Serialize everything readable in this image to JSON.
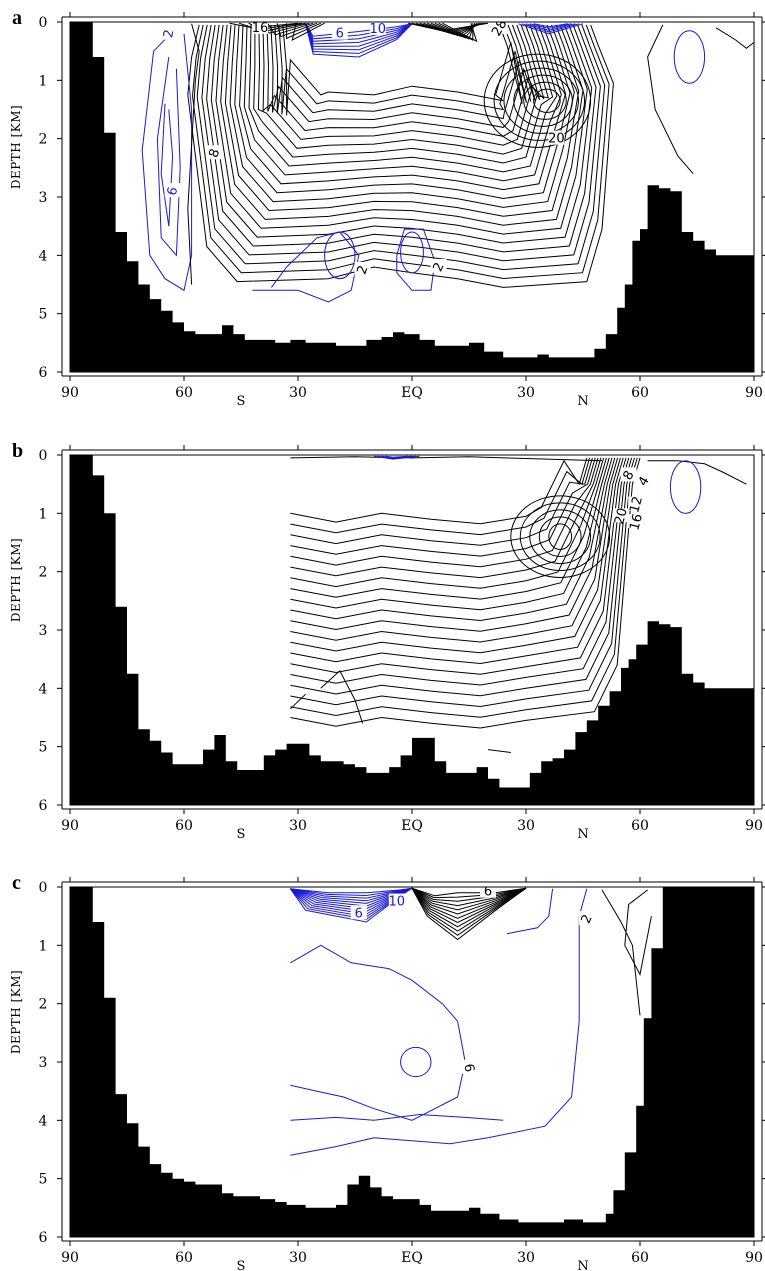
{
  "figure": {
    "panel_labels": [
      "a",
      "b",
      "c"
    ]
  },
  "colors": {
    "positive": "#000000",
    "negative": "#1a1ad6",
    "topography": "#000000"
  },
  "chart_data": [
    {
      "type": "contour",
      "panel": "a",
      "ylabel": "DEPTH [KM]",
      "yticks": [
        "0",
        "1",
        "2",
        "3",
        "4",
        "5",
        "6"
      ],
      "xticks": [
        "90",
        "60",
        "30",
        "EQ",
        "30",
        "60",
        "90"
      ],
      "hemisphere_labels": [
        "S",
        "N"
      ],
      "xlim": [
        -90,
        90
      ],
      "ylim": [
        6,
        0
      ],
      "contour_labels": [
        {
          "text": "2",
          "x": -64,
          "y": 0.2,
          "color": "negative",
          "rot": -80
        },
        {
          "text": "16",
          "x": -40,
          "y": 0.1,
          "color": "positive",
          "rot": 0
        },
        {
          "text": "6",
          "x": -19,
          "y": 0.2,
          "color": "negative",
          "rot": 0
        },
        {
          "text": "10",
          "x": -9,
          "y": 0.12,
          "color": "negative",
          "rot": 0
        },
        {
          "text": "8",
          "x": -52,
          "y": 2.25,
          "color": "positive",
          "rot": -70
        },
        {
          "text": "6",
          "x": -63,
          "y": 2.9,
          "color": "negative",
          "rot": -75
        },
        {
          "text": "2",
          "x": -13,
          "y": 4.25,
          "color": "positive",
          "rot": -70
        },
        {
          "text": "2",
          "x": 7,
          "y": 4.2,
          "color": "positive",
          "rot": -65
        },
        {
          "text": "20",
          "x": 38,
          "y": 2.0,
          "color": "positive",
          "rot": 0
        },
        {
          "text": "28",
          "x": 23,
          "y": 0.1,
          "color": "positive",
          "rot": -60
        }
      ],
      "topography": [
        [
          -90,
          0
        ],
        [
          -84,
          0
        ],
        [
          -84,
          0.6
        ],
        [
          -81,
          0.6
        ],
        [
          -81,
          1.9
        ],
        [
          -78,
          1.9
        ],
        [
          -78,
          3.6
        ],
        [
          -75,
          3.6
        ],
        [
          -75,
          4.1
        ],
        [
          -72,
          4.1
        ],
        [
          -72,
          4.5
        ],
        [
          -69,
          4.5
        ],
        [
          -69,
          4.75
        ],
        [
          -66,
          4.75
        ],
        [
          -66,
          4.95
        ],
        [
          -63,
          4.95
        ],
        [
          -63,
          5.15
        ],
        [
          -60,
          5.15
        ],
        [
          -60,
          5.3
        ],
        [
          -57,
          5.3
        ],
        [
          -57,
          5.35
        ],
        [
          -50,
          5.35
        ],
        [
          -50,
          5.2
        ],
        [
          -47,
          5.2
        ],
        [
          -47,
          5.35
        ],
        [
          -44,
          5.35
        ],
        [
          -44,
          5.45
        ],
        [
          -36,
          5.45
        ],
        [
          -36,
          5.5
        ],
        [
          -32,
          5.5
        ],
        [
          -32,
          5.45
        ],
        [
          -28,
          5.45
        ],
        [
          -28,
          5.5
        ],
        [
          -20,
          5.5
        ],
        [
          -20,
          5.55
        ],
        [
          -12,
          5.55
        ],
        [
          -12,
          5.45
        ],
        [
          -8,
          5.45
        ],
        [
          -8,
          5.4
        ],
        [
          -5,
          5.4
        ],
        [
          -5,
          5.32
        ],
        [
          -2,
          5.32
        ],
        [
          -2,
          5.35
        ],
        [
          2,
          5.35
        ],
        [
          2,
          5.45
        ],
        [
          6,
          5.45
        ],
        [
          6,
          5.55
        ],
        [
          15,
          5.55
        ],
        [
          15,
          5.5
        ],
        [
          19,
          5.5
        ],
        [
          19,
          5.65
        ],
        [
          24,
          5.65
        ],
        [
          24,
          5.75
        ],
        [
          33,
          5.75
        ],
        [
          33,
          5.7
        ],
        [
          36,
          5.7
        ],
        [
          36,
          5.75
        ],
        [
          48,
          5.75
        ],
        [
          48,
          5.6
        ],
        [
          51,
          5.6
        ],
        [
          51,
          5.35
        ],
        [
          54,
          5.35
        ],
        [
          54,
          4.9
        ],
        [
          56,
          4.9
        ],
        [
          56,
          4.5
        ],
        [
          58,
          4.5
        ],
        [
          58,
          3.75
        ],
        [
          60,
          3.75
        ],
        [
          60,
          3.55
        ],
        [
          62,
          3.55
        ],
        [
          62,
          2.8
        ],
        [
          65,
          2.8
        ],
        [
          65,
          2.85
        ],
        [
          68,
          2.85
        ],
        [
          68,
          2.9
        ],
        [
          71,
          2.9
        ],
        [
          71,
          3.6
        ],
        [
          74,
          3.6
        ],
        [
          74,
          3.75
        ],
        [
          77,
          3.75
        ],
        [
          77,
          3.9
        ],
        [
          80,
          3.9
        ],
        [
          80,
          4.0
        ],
        [
          90,
          4.0
        ],
        [
          90,
          6
        ],
        [
          -90,
          6
        ]
      ]
    },
    {
      "type": "contour",
      "panel": "b",
      "ylabel": "DEPTH [KM]",
      "yticks": [
        "0",
        "1",
        "2",
        "3",
        "4",
        "5",
        "6"
      ],
      "xticks": [
        "90",
        "60",
        "30",
        "EQ",
        "30",
        "60",
        "90"
      ],
      "hemisphere_labels": [
        "S",
        "N"
      ],
      "xlim": [
        -90,
        90
      ],
      "ylim": [
        6,
        0
      ],
      "contour_labels": [
        {
          "text": "8",
          "x": 57,
          "y": 0.35,
          "color": "positive",
          "rot": -60
        },
        {
          "text": "4",
          "x": 61,
          "y": 0.45,
          "color": "positive",
          "rot": -60
        },
        {
          "text": "12",
          "x": 59,
          "y": 0.85,
          "color": "positive",
          "rot": -75
        },
        {
          "text": "16",
          "x": 59,
          "y": 1.15,
          "color": "positive",
          "rot": -75
        },
        {
          "text": "20",
          "x": 55,
          "y": 1.05,
          "color": "positive",
          "rot": -75
        }
      ],
      "topography": [
        [
          -90,
          0
        ],
        [
          -84,
          0
        ],
        [
          -84,
          0.35
        ],
        [
          -81,
          0.35
        ],
        [
          -81,
          1.0
        ],
        [
          -78,
          1.0
        ],
        [
          -78,
          2.6
        ],
        [
          -75,
          2.6
        ],
        [
          -75,
          3.75
        ],
        [
          -72,
          3.75
        ],
        [
          -72,
          4.7
        ],
        [
          -69,
          4.7
        ],
        [
          -69,
          4.9
        ],
        [
          -66,
          4.9
        ],
        [
          -66,
          5.1
        ],
        [
          -63,
          5.1
        ],
        [
          -63,
          5.3
        ],
        [
          -55,
          5.3
        ],
        [
          -55,
          5.05
        ],
        [
          -52,
          5.05
        ],
        [
          -52,
          4.8
        ],
        [
          -49,
          4.8
        ],
        [
          -49,
          5.25
        ],
        [
          -46,
          5.25
        ],
        [
          -46,
          5.4
        ],
        [
          -39,
          5.4
        ],
        [
          -39,
          5.15
        ],
        [
          -36,
          5.15
        ],
        [
          -36,
          5.05
        ],
        [
          -33,
          5.05
        ],
        [
          -33,
          4.95
        ],
        [
          -27,
          4.95
        ],
        [
          -27,
          5.15
        ],
        [
          -24,
          5.15
        ],
        [
          -24,
          5.25
        ],
        [
          -18,
          5.25
        ],
        [
          -18,
          5.3
        ],
        [
          -15,
          5.3
        ],
        [
          -15,
          5.35
        ],
        [
          -12,
          5.35
        ],
        [
          -12,
          5.45
        ],
        [
          -6,
          5.45
        ],
        [
          -6,
          5.35
        ],
        [
          -3,
          5.35
        ],
        [
          -3,
          5.15
        ],
        [
          0,
          5.15
        ],
        [
          0,
          4.85
        ],
        [
          6,
          4.85
        ],
        [
          6,
          5.25
        ],
        [
          9,
          5.25
        ],
        [
          9,
          5.45
        ],
        [
          17,
          5.45
        ],
        [
          17,
          5.35
        ],
        [
          20,
          5.35
        ],
        [
          20,
          5.55
        ],
        [
          23,
          5.55
        ],
        [
          23,
          5.7
        ],
        [
          31,
          5.7
        ],
        [
          31,
          5.45
        ],
        [
          34,
          5.45
        ],
        [
          34,
          5.25
        ],
        [
          37,
          5.25
        ],
        [
          37,
          5.2
        ],
        [
          40,
          5.2
        ],
        [
          40,
          5.05
        ],
        [
          43,
          5.05
        ],
        [
          43,
          4.75
        ],
        [
          46,
          4.75
        ],
        [
          46,
          4.55
        ],
        [
          49,
          4.55
        ],
        [
          49,
          4.3
        ],
        [
          52,
          4.3
        ],
        [
          52,
          4.05
        ],
        [
          55,
          4.05
        ],
        [
          55,
          3.65
        ],
        [
          57,
          3.65
        ],
        [
          57,
          3.5
        ],
        [
          59,
          3.5
        ],
        [
          59,
          3.25
        ],
        [
          62,
          3.25
        ],
        [
          62,
          2.85
        ],
        [
          65,
          2.85
        ],
        [
          65,
          2.9
        ],
        [
          68,
          2.9
        ],
        [
          68,
          2.95
        ],
        [
          71,
          2.95
        ],
        [
          71,
          3.75
        ],
        [
          74,
          3.75
        ],
        [
          74,
          3.9
        ],
        [
          77,
          3.9
        ],
        [
          77,
          4.0
        ],
        [
          90,
          4.0
        ],
        [
          90,
          6
        ],
        [
          -90,
          6
        ]
      ]
    },
    {
      "type": "contour",
      "panel": "c",
      "ylabel": "DEPTH [KM]",
      "yticks": [
        "0",
        "1",
        "2",
        "3",
        "4",
        "5",
        "6"
      ],
      "xticks": [
        "90",
        "60",
        "30",
        "EQ",
        "30",
        "60",
        "90"
      ],
      "hemisphere_labels": [
        "S",
        "N"
      ],
      "xlim": [
        -90,
        90
      ],
      "ylim": [
        6,
        0
      ],
      "contour_labels": [
        {
          "text": "6",
          "x": -14,
          "y": 0.45,
          "color": "negative",
          "rot": 0
        },
        {
          "text": "10",
          "x": -4,
          "y": 0.25,
          "color": "negative",
          "rot": 0
        },
        {
          "text": "6",
          "x": 15,
          "y": 3.1,
          "color": "positive",
          "rot": 80
        },
        {
          "text": "2",
          "x": 46,
          "y": 0.55,
          "color": "positive",
          "rot": -65
        },
        {
          "text": "6",
          "x": 20,
          "y": 0.08,
          "color": "positive",
          "rot": 0
        }
      ],
      "topography": [
        [
          -90,
          0
        ],
        [
          -84,
          0
        ],
        [
          -84,
          0.6
        ],
        [
          -81,
          0.6
        ],
        [
          -81,
          1.9
        ],
        [
          -78,
          1.9
        ],
        [
          -78,
          3.55
        ],
        [
          -75,
          3.55
        ],
        [
          -75,
          4.05
        ],
        [
          -72,
          4.05
        ],
        [
          -72,
          4.45
        ],
        [
          -69,
          4.45
        ],
        [
          -69,
          4.75
        ],
        [
          -66,
          4.75
        ],
        [
          -66,
          4.9
        ],
        [
          -63,
          4.9
        ],
        [
          -63,
          5.0
        ],
        [
          -60,
          5.0
        ],
        [
          -60,
          5.05
        ],
        [
          -57,
          5.05
        ],
        [
          -57,
          5.1
        ],
        [
          -50,
          5.1
        ],
        [
          -50,
          5.25
        ],
        [
          -47,
          5.25
        ],
        [
          -47,
          5.3
        ],
        [
          -40,
          5.3
        ],
        [
          -40,
          5.35
        ],
        [
          -36,
          5.35
        ],
        [
          -36,
          5.4
        ],
        [
          -33,
          5.4
        ],
        [
          -33,
          5.45
        ],
        [
          -28,
          5.45
        ],
        [
          -28,
          5.5
        ],
        [
          -20,
          5.5
        ],
        [
          -20,
          5.45
        ],
        [
          -17,
          5.45
        ],
        [
          -17,
          5.1
        ],
        [
          -14,
          5.1
        ],
        [
          -14,
          4.95
        ],
        [
          -11,
          4.95
        ],
        [
          -11,
          5.15
        ],
        [
          -8,
          5.15
        ],
        [
          -8,
          5.3
        ],
        [
          -5,
          5.3
        ],
        [
          -5,
          5.35
        ],
        [
          2,
          5.35
        ],
        [
          2,
          5.45
        ],
        [
          5,
          5.45
        ],
        [
          5,
          5.55
        ],
        [
          15,
          5.55
        ],
        [
          15,
          5.5
        ],
        [
          18,
          5.5
        ],
        [
          18,
          5.6
        ],
        [
          23,
          5.6
        ],
        [
          23,
          5.7
        ],
        [
          28,
          5.7
        ],
        [
          28,
          5.75
        ],
        [
          40,
          5.75
        ],
        [
          40,
          5.7
        ],
        [
          45,
          5.7
        ],
        [
          45,
          5.75
        ],
        [
          51,
          5.75
        ],
        [
          51,
          5.6
        ],
        [
          53,
          5.6
        ],
        [
          53,
          5.2
        ],
        [
          56,
          5.2
        ],
        [
          56,
          4.55
        ],
        [
          59,
          4.55
        ],
        [
          59,
          3.75
        ],
        [
          61,
          3.75
        ],
        [
          61,
          2.25
        ],
        [
          63,
          2.25
        ],
        [
          63,
          1.05
        ],
        [
          66,
          1.05
        ],
        [
          66,
          0
        ],
        [
          90,
          0
        ],
        [
          90,
          6
        ],
        [
          -90,
          6
        ]
      ]
    }
  ]
}
